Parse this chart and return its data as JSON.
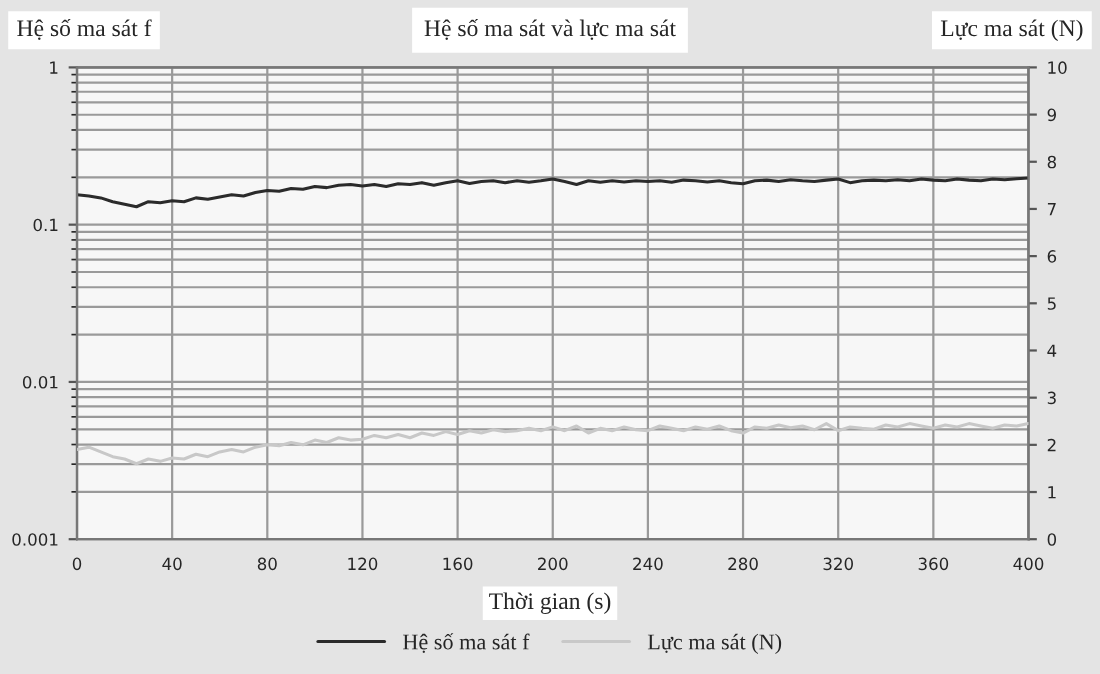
{
  "chart_data": {
    "type": "line",
    "title": "Hệ số ma sát và lực ma sát",
    "xlabel": "Thời gian (s)",
    "ylabel": "Hệ số ma sát f",
    "y2label": "Lực ma sát (N)",
    "x": [
      0,
      5,
      10,
      15,
      20,
      25,
      30,
      35,
      40,
      45,
      50,
      55,
      60,
      65,
      70,
      75,
      80,
      85,
      90,
      95,
      100,
      105,
      110,
      115,
      120,
      125,
      130,
      135,
      140,
      145,
      150,
      155,
      160,
      165,
      170,
      175,
      180,
      185,
      190,
      195,
      200,
      205,
      210,
      215,
      220,
      225,
      230,
      235,
      240,
      245,
      250,
      255,
      260,
      265,
      270,
      275,
      280,
      285,
      290,
      295,
      300,
      305,
      310,
      315,
      320,
      325,
      330,
      335,
      340,
      345,
      350,
      355,
      360,
      365,
      370,
      375,
      380,
      385,
      390,
      395,
      400
    ],
    "series": [
      {
        "name": "Hệ số ma sát f",
        "color": "#2b2b2b",
        "values": [
          0.155,
          0.152,
          0.148,
          0.14,
          0.135,
          0.13,
          0.14,
          0.138,
          0.142,
          0.14,
          0.148,
          0.145,
          0.15,
          0.155,
          0.152,
          0.16,
          0.165,
          0.163,
          0.17,
          0.168,
          0.175,
          0.172,
          0.178,
          0.18,
          0.176,
          0.18,
          0.175,
          0.182,
          0.18,
          0.185,
          0.178,
          0.185,
          0.19,
          0.183,
          0.188,
          0.19,
          0.185,
          0.19,
          0.186,
          0.19,
          0.195,
          0.188,
          0.18,
          0.19,
          0.186,
          0.19,
          0.187,
          0.19,
          0.188,
          0.19,
          0.186,
          0.192,
          0.19,
          0.187,
          0.19,
          0.185,
          0.182,
          0.19,
          0.192,
          0.188,
          0.193,
          0.19,
          0.188,
          0.192,
          0.195,
          0.185,
          0.19,
          0.192,
          0.19,
          0.193,
          0.19,
          0.195,
          0.192,
          0.19,
          0.195,
          0.192,
          0.19,
          0.195,
          0.193,
          0.196,
          0.198
        ]
      },
      {
        "name": "Lực ma sát (N)",
        "color": "#c8c8c8",
        "axis": "y2",
        "values": [
          1.9,
          1.95,
          1.85,
          1.75,
          1.7,
          1.6,
          1.7,
          1.65,
          1.72,
          1.7,
          1.8,
          1.75,
          1.85,
          1.9,
          1.85,
          1.95,
          2.0,
          1.98,
          2.05,
          2.0,
          2.1,
          2.05,
          2.15,
          2.1,
          2.12,
          2.2,
          2.15,
          2.22,
          2.15,
          2.25,
          2.2,
          2.28,
          2.22,
          2.3,
          2.25,
          2.32,
          2.28,
          2.3,
          2.35,
          2.3,
          2.38,
          2.3,
          2.4,
          2.25,
          2.35,
          2.3,
          2.38,
          2.32,
          2.3,
          2.4,
          2.35,
          2.3,
          2.38,
          2.33,
          2.4,
          2.3,
          2.25,
          2.38,
          2.35,
          2.42,
          2.36,
          2.4,
          2.32,
          2.45,
          2.3,
          2.38,
          2.35,
          2.33,
          2.42,
          2.38,
          2.45,
          2.4,
          2.35,
          2.42,
          2.38,
          2.45,
          2.4,
          2.35,
          2.42,
          2.4,
          2.45
        ]
      }
    ],
    "xlim": [
      0,
      400
    ],
    "xticks": [
      0,
      40,
      80,
      120,
      160,
      200,
      240,
      280,
      320,
      360,
      400
    ],
    "log": "y",
    "ylim": [
      0.001,
      1
    ],
    "yticks": [
      0.001,
      0.01,
      0.1,
      1
    ],
    "y2lim": [
      0,
      10
    ],
    "y2ticks": [
      0,
      1,
      2,
      3,
      4,
      5,
      6,
      7,
      8,
      9,
      10
    ],
    "grid": true,
    "legend": "bottom",
    "line_style": "solid",
    "marker": "none"
  }
}
